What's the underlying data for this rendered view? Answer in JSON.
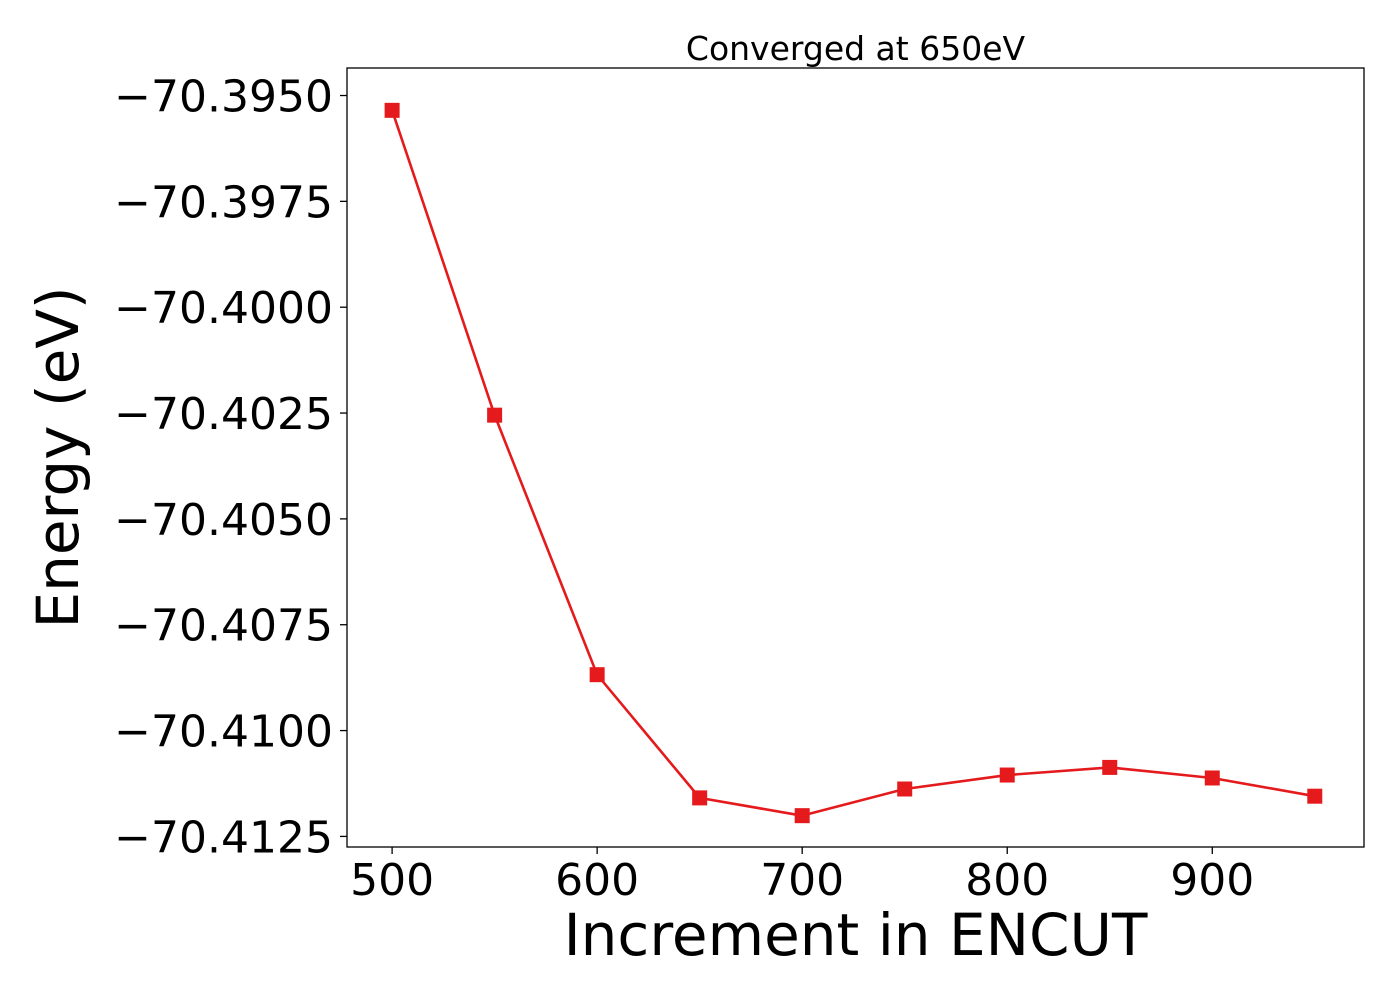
{
  "chart_data": {
    "type": "line",
    "title": "Converged at 650eV",
    "xlabel": "Increment in ENCUT",
    "ylabel": "Energy (eV)",
    "x": [
      500,
      550,
      600,
      650,
      700,
      750,
      800,
      850,
      900,
      950
    ],
    "series": [
      {
        "values": [
          -70.39535,
          -70.40255,
          -70.40868,
          -70.41159,
          -70.41201,
          -70.41138,
          -70.41105,
          -70.41087,
          -70.41112,
          -70.41155
        ],
        "color": "#e41a1c",
        "marker": "square"
      }
    ],
    "xlim": [
      478,
      974
    ],
    "ylim": [
      -70.41275,
      -70.39435
    ],
    "xticks": [
      500,
      600,
      700,
      800,
      900
    ],
    "xtick_labels": [
      "500",
      "600",
      "700",
      "800",
      "900"
    ],
    "yticks": [
      -70.395,
      -70.3975,
      -70.4,
      -70.4025,
      -70.405,
      -70.4075,
      -70.41,
      -70.4125
    ],
    "ytick_labels": [
      "−70.3950",
      "−70.3975",
      "−70.4000",
      "−70.4025",
      "−70.4050",
      "−70.4075",
      "−70.4100",
      "−70.4125"
    ],
    "grid": false,
    "legend": "none"
  }
}
